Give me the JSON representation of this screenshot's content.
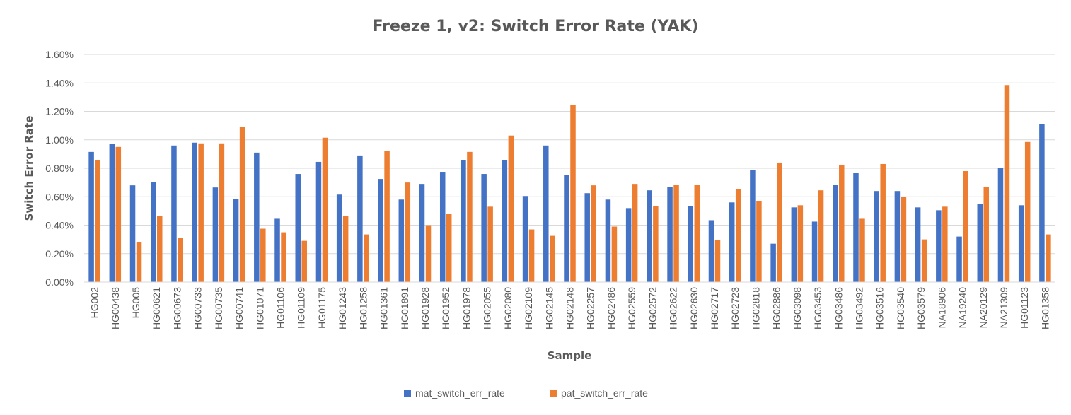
{
  "chart_data": {
    "type": "bar",
    "title": "Freeze 1, v2: Switch Error Rate (YAK)",
    "xlabel": "Sample",
    "ylabel": "Switch Error Rate",
    "ylim": [
      0,
      0.016
    ],
    "yticks": [
      "0.00%",
      "0.20%",
      "0.40%",
      "0.60%",
      "0.80%",
      "1.00%",
      "1.20%",
      "1.40%",
      "1.60%"
    ],
    "grid": true,
    "legend_position": "bottom",
    "categories": [
      "HG002",
      "HG00438",
      "HG005",
      "HG00621",
      "HG00673",
      "HG00733",
      "HG00735",
      "HG00741",
      "HG01071",
      "HG01106",
      "HG01109",
      "HG01175",
      "HG01243",
      "HG01258",
      "HG01361",
      "HG01891",
      "HG01928",
      "HG01952",
      "HG01978",
      "HG02055",
      "HG02080",
      "HG02109",
      "HG02145",
      "HG02148",
      "HG02257",
      "HG02486",
      "HG02559",
      "HG02572",
      "HG02622",
      "HG02630",
      "HG02717",
      "HG02723",
      "HG02818",
      "HG02886",
      "HG03098",
      "HG03453",
      "HG03486",
      "HG03492",
      "HG03516",
      "HG03540",
      "HG03579",
      "NA18906",
      "NA19240",
      "NA20129",
      "NA21309",
      "HG01123",
      "HG01358"
    ],
    "series": [
      {
        "name": "mat_switch_err_rate",
        "color": "#4472c4",
        "values": [
          0.00915,
          0.0097,
          0.0068,
          0.00705,
          0.0096,
          0.0098,
          0.00665,
          0.00585,
          0.0091,
          0.00445,
          0.0076,
          0.00845,
          0.00615,
          0.0089,
          0.00725,
          0.0058,
          0.0069,
          0.00775,
          0.00855,
          0.0076,
          0.00855,
          0.00605,
          0.0096,
          0.00755,
          0.00625,
          0.0058,
          0.0052,
          0.00645,
          0.0067,
          0.00535,
          0.00435,
          0.0056,
          0.0079,
          0.0027,
          0.00525,
          0.00425,
          0.00685,
          0.0077,
          0.0064,
          0.0064,
          0.00525,
          0.00505,
          0.0032,
          0.0055,
          0.00805,
          0.0054,
          0.0111
        ]
      },
      {
        "name": "pat_switch_err_rate",
        "color": "#ed7d31",
        "values": [
          0.00855,
          0.0095,
          0.0028,
          0.00465,
          0.0031,
          0.00975,
          0.00975,
          0.0109,
          0.00375,
          0.0035,
          0.0029,
          0.01015,
          0.00465,
          0.00335,
          0.0092,
          0.007,
          0.004,
          0.0048,
          0.00915,
          0.0053,
          0.0103,
          0.0037,
          0.00325,
          0.01245,
          0.0068,
          0.0039,
          0.0069,
          0.00535,
          0.00685,
          0.00685,
          0.00295,
          0.00655,
          0.0057,
          0.0084,
          0.0054,
          0.00645,
          0.00825,
          0.00445,
          0.0083,
          0.006,
          0.003,
          0.0053,
          0.0078,
          0.0067,
          0.01385,
          0.00985,
          0.00335
        ]
      }
    ]
  }
}
